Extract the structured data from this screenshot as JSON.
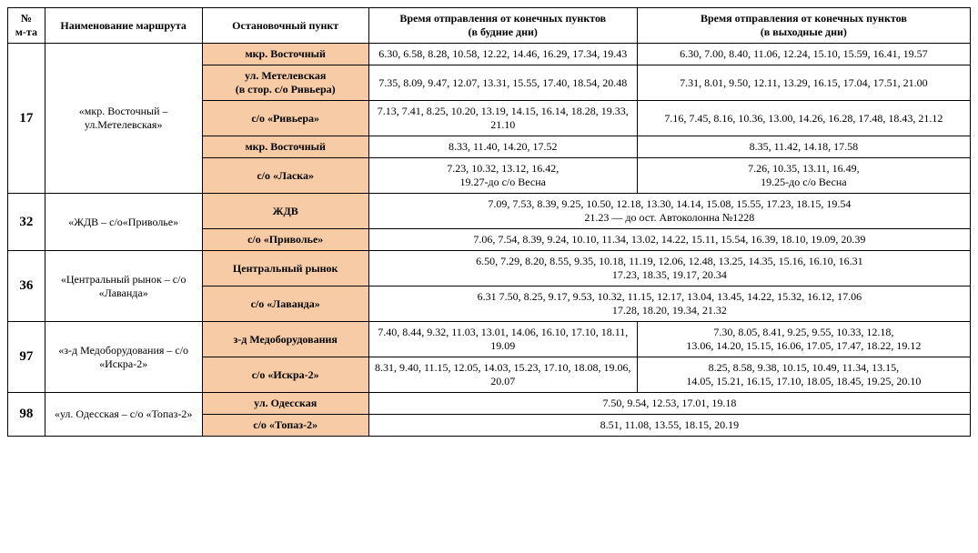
{
  "headers": {
    "col0": "№\nм-та",
    "col1": "Наименование маршрута",
    "col2": "Остановочный пункт",
    "col3": "Время отправления от конечных пунктов\n(в будние дни)",
    "col4": "Время отправления от конечных пунктов\n(в выходные дни)"
  },
  "colors": {
    "stop_bg": "#f7cba5",
    "border": "#000000",
    "background": "#ffffff"
  },
  "routes": [
    {
      "no": "17",
      "name": "«мкр. Восточный – ул.Метелевская»",
      "stops": [
        {
          "stop": "мкр. Восточный",
          "weekday": "6.30, 6.58, 8.28, 10.58, 12.22, 14.46, 16.29, 17.34, 19.43",
          "weekend": "6.30, 7.00, 8.40, 11.06, 12.24, 15.10, 15.59, 16.41, 19.57"
        },
        {
          "stop": "ул. Метелевская\n(в стор. с/о Ривьера)",
          "weekday": "7.35, 8.09, 9.47, 12.07, 13.31, 15.55, 17.40, 18.54, 20.48",
          "weekend": "7.31, 8.01, 9.50, 12.11, 13.29, 16.15, 17.04, 17.51, 21.00"
        },
        {
          "stop": "с/о «Ривьера»",
          "weekday": "7.13, 7.41, 8.25, 10.20, 13.19, 14.15, 16.14, 18.28, 19.33, 21.10",
          "weekend": "7.16, 7.45, 8.16, 10.36, 13.00, 14.26, 16.28, 17.48, 18.43, 21.12"
        },
        {
          "stop": "мкр. Восточный",
          "weekday": "8.33, 11.40, 14.20, 17.52",
          "weekend": "8.35, 11.42, 14.18, 17.58"
        },
        {
          "stop": "с/о «Ласка»",
          "weekday": "7.23, 10.32, 13.12, 16.42,\n19.27-до с/о Весна",
          "weekend": "7.26, 10.35, 13.11, 16.49,\n19.25-до с/о Весна"
        }
      ]
    },
    {
      "no": "32",
      "name": "«ЖДВ – с/о«Приволье»",
      "stops": [
        {
          "stop": "ЖДВ",
          "merged": "7.09, 7.53, 8.39, 9.25, 10.50, 12.18, 13.30, 14.14, 15.08, 15.55, 17.23, 18.15, 19.54\n21.23 — до ост. Автоколонна №1228"
        },
        {
          "stop": "с/о «Приволье»",
          "merged": "7.06, 7.54, 8.39, 9.24, 10.10, 11.34, 13.02, 14.22, 15.11, 15.54, 16.39, 18.10, 19.09, 20.39"
        }
      ]
    },
    {
      "no": "36",
      "name": "«Центральный рынок – с/о «Лаванда»",
      "stops": [
        {
          "stop": "Центральный рынок",
          "merged": "6.50, 7.29, 8.20, 8.55, 9.35, 10.18, 11.19, 12.06, 12.48, 13.25, 14.35, 15.16, 16.10, 16.31\n17.23, 18.35, 19.17, 20.34"
        },
        {
          "stop": "с/о «Лаванда»",
          "merged": "6.31 7.50, 8.25, 9.17, 9.53, 10.32, 11.15, 12.17, 13.04, 13.45, 14.22, 15.32, 16.12, 17.06\n17.28, 18.20, 19.34, 21.32"
        }
      ]
    },
    {
      "no": "97",
      "name": "«з-д Медоборудования – с/о «Искра-2»",
      "stops": [
        {
          "stop": "з-д Медоборудования",
          "weekday": "7.40, 8.44, 9.32, 11.03, 13.01, 14.06, 16.10, 17.10, 18.11, 19.09",
          "weekend": "7.30, 8.05, 8.41, 9.25, 9.55, 10.33, 12.18,\n13.06, 14.20, 15.15, 16.06, 17.05, 17.47, 18.22, 19.12"
        },
        {
          "stop": "с/о «Искра-2»",
          "weekday": "8.31, 9.40, 11.15, 12.05, 14.03, 15.23, 17.10, 18.08, 19.06, 20.07",
          "weekend": "8.25, 8.58, 9.38, 10.15, 10.49, 11.34, 13.15,\n14.05, 15.21, 16.15, 17.10, 18.05, 18.45, 19.25, 20.10"
        }
      ]
    },
    {
      "no": "98",
      "name": "«ул. Одесская – с/о «Топаз-2»",
      "stops": [
        {
          "stop": "ул. Одесская",
          "merged": "7.50, 9.54, 12.53, 17.01, 19.18"
        },
        {
          "stop": "с/о «Топаз-2»",
          "merged": "8.51, 11.08, 13.55, 18.15, 20.19"
        }
      ]
    }
  ]
}
